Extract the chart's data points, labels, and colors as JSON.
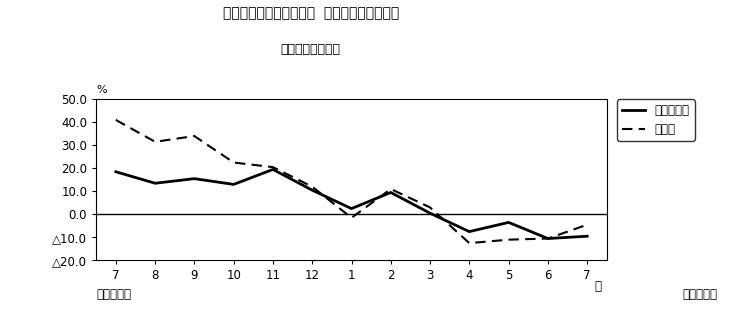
{
  "title_line1": "第２図　所定外労働時間  対前年同月比の推移",
  "title_line2": "（規模５人以上）",
  "x_labels": [
    "7",
    "8",
    "9",
    "10",
    "11",
    "12",
    "1",
    "2",
    "3",
    "4",
    "5",
    "6",
    "7"
  ],
  "x_bottom_left": "平成２２年",
  "x_bottom_right": "平成２３年",
  "ylabel": "%",
  "ylim": [
    -20.0,
    50.0
  ],
  "yticks": [
    -20.0,
    -10.0,
    0.0,
    10.0,
    20.0,
    30.0,
    40.0,
    50.0
  ],
  "ytick_labels": [
    "△20.0",
    "△10.0",
    "0.0",
    "10.0",
    "20.0",
    "30.0",
    "40.0",
    "50.0"
  ],
  "series1_name": "調査産業計",
  "series1_values": [
    18.5,
    13.5,
    15.5,
    13.0,
    19.5,
    10.5,
    2.5,
    9.5,
    0.5,
    -7.5,
    -3.5,
    -10.5,
    -9.5
  ],
  "series2_name": "製造業",
  "series2_values": [
    41.0,
    31.5,
    34.0,
    22.5,
    20.5,
    12.0,
    -1.5,
    11.0,
    3.0,
    -12.5,
    -11.0,
    -10.5,
    -4.5
  ],
  "series1_color": "#000000",
  "series2_color": "#000000",
  "bg_color": "#ffffff",
  "box_color": "#000000"
}
